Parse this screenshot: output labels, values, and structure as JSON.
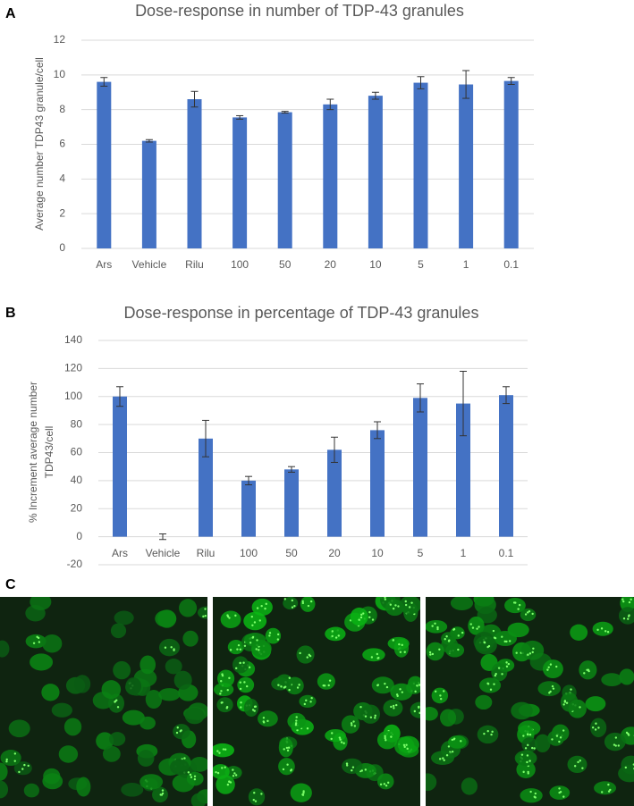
{
  "chart_data": [
    {
      "type": "bar",
      "panel_label": "A",
      "title": "Dose-response in number of TDP-43 granules",
      "y_label": [
        "Average number TDP43 granule/cell"
      ],
      "categories": [
        "Ars",
        "Vehicle",
        "Rilu",
        "100",
        "50",
        "20",
        "10",
        "5",
        "1",
        "0.1"
      ],
      "values": [
        9.6,
        6.2,
        8.6,
        7.55,
        7.85,
        8.3,
        8.8,
        9.55,
        9.45,
        9.65
      ],
      "errors": [
        0.25,
        0.07,
        0.45,
        0.1,
        0.05,
        0.3,
        0.2,
        0.35,
        0.8,
        0.2
      ],
      "color": "#4472c4",
      "ylim": [
        0,
        12
      ],
      "yticks": [
        0,
        2,
        4,
        6,
        8,
        10,
        12
      ],
      "grid": true
    },
    {
      "type": "bar",
      "panel_label": "B",
      "title": "Dose-response in percentage of TDP-43 granules",
      "y_label": [
        "% Increment average number",
        "TDP43/cell"
      ],
      "categories": [
        "Ars",
        "Vehicle",
        "Rilu",
        "100",
        "50",
        "20",
        "10",
        "5",
        "1",
        "0.1"
      ],
      "values": [
        100,
        0,
        70,
        40,
        48,
        62,
        76,
        99,
        95,
        101
      ],
      "errors": [
        7,
        2,
        13,
        3,
        2,
        9,
        6,
        10,
        23,
        6
      ],
      "color": "#4472c4",
      "ylim": [
        -20,
        140
      ],
      "yticks": [
        -20,
        0,
        20,
        40,
        60,
        80,
        100,
        120,
        140
      ],
      "grid": true
    }
  ],
  "panel_c": {
    "panel_label": "C"
  }
}
